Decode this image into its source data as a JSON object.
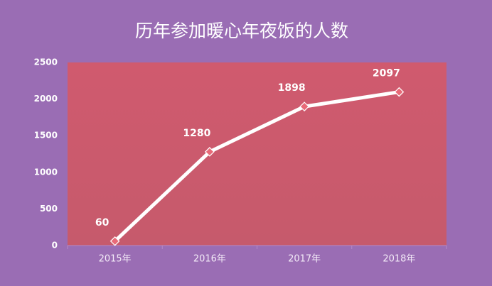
{
  "chart_data": {
    "type": "line",
    "title": "历年参加暖心年夜饭的人数",
    "categories": [
      "2015年",
      "2016年",
      "2017年",
      "2018年"
    ],
    "values": [
      60,
      1280,
      1898,
      2097
    ],
    "color": "#ffffff",
    "ylim": [
      0,
      2500
    ],
    "yticks": [
      0,
      500,
      1000,
      1500,
      2000,
      2500
    ],
    "grid": false
  }
}
